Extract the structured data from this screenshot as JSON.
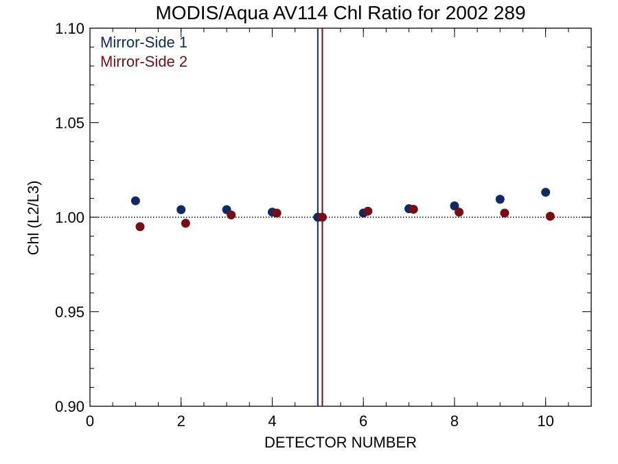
{
  "chart_data": {
    "type": "scatter",
    "title": "MODIS/Aqua AV114 Chl Ratio for 2002 289",
    "xlabel": "DETECTOR NUMBER",
    "ylabel": "Chl (L2/L3)",
    "xlim": [
      0,
      11
    ],
    "ylim": [
      0.9,
      1.1
    ],
    "x_ticks": [
      0,
      2,
      4,
      6,
      8,
      10
    ],
    "x_tick_labels": [
      "0",
      "2",
      "4",
      "6",
      "8",
      "10"
    ],
    "y_ticks": [
      0.9,
      0.95,
      1.0,
      1.05,
      1.1
    ],
    "y_tick_labels": [
      "0.90",
      "0.95",
      "1.00",
      "1.05",
      "1.10"
    ],
    "x_minor_step": 0.5,
    "y_minor_step": 0.01,
    "reference_line": 1.0,
    "legend_position": "top-left",
    "series": [
      {
        "name": "Mirror-Side 1",
        "color": "#0d2a66",
        "x": [
          1,
          2,
          3,
          4,
          5,
          6,
          7,
          8,
          9,
          10
        ],
        "y": [
          1.0087,
          1.004,
          1.004,
          1.0027,
          1.0,
          1.0022,
          1.0045,
          1.006,
          1.0095,
          1.0132
        ],
        "vline": 5.0
      },
      {
        "name": "Mirror-Side 2",
        "color": "#7a0c12",
        "x": [
          1.1,
          2.1,
          3.1,
          4.1,
          5.1,
          6.1,
          7.1,
          8.1,
          9.1,
          10.1
        ],
        "y": [
          0.995,
          0.9968,
          1.0012,
          1.0022,
          1.0,
          1.0032,
          1.0042,
          1.0027,
          1.0022,
          1.0005
        ],
        "vline": 5.1
      }
    ]
  }
}
